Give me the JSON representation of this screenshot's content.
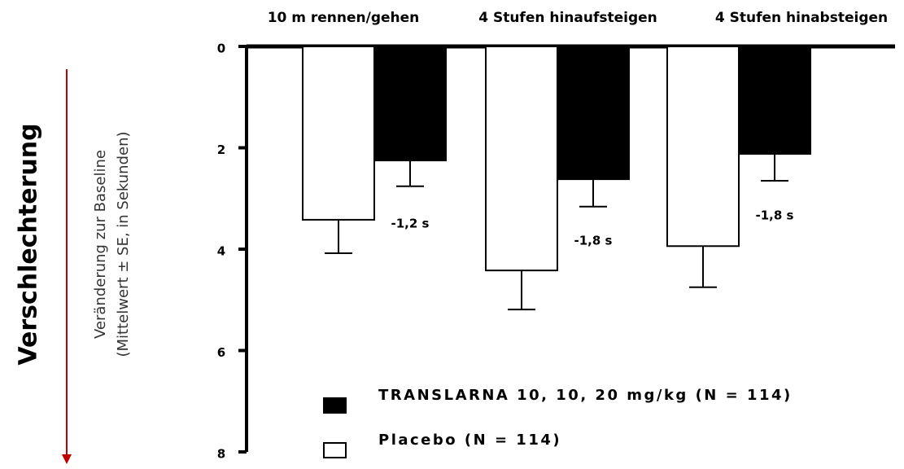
{
  "chart_data": {
    "type": "bar",
    "categories": [
      "10 m rennen/gehen",
      "4 Stufen hinaufsteigen",
      "4 Stufen hinabsteigen"
    ],
    "series": [
      {
        "name": "TRANSLARNA 10, 10, 20 mg/kg (N = 114)",
        "color": "#000000",
        "values": [
          2.25,
          2.62,
          2.12
        ],
        "errors": [
          0.51,
          0.54,
          0.53
        ]
      },
      {
        "name": "Placebo (N = 114)",
        "color": "#ffffff",
        "values": [
          3.42,
          4.42,
          3.94
        ],
        "errors": [
          0.66,
          0.77,
          0.81
        ]
      }
    ],
    "ylim": [
      0,
      8
    ],
    "yticks": [
      0,
      2,
      4,
      6,
      8
    ],
    "y_inverted": true,
    "ylabel": [
      "Veränderung zur Baseline",
      "(Mittelwert ± SE, in Sekunden)"
    ],
    "side_label": "Verschlechterung",
    "annotations": [
      "-1,2 s",
      "-1,8 s",
      "-1,8 s"
    ]
  }
}
